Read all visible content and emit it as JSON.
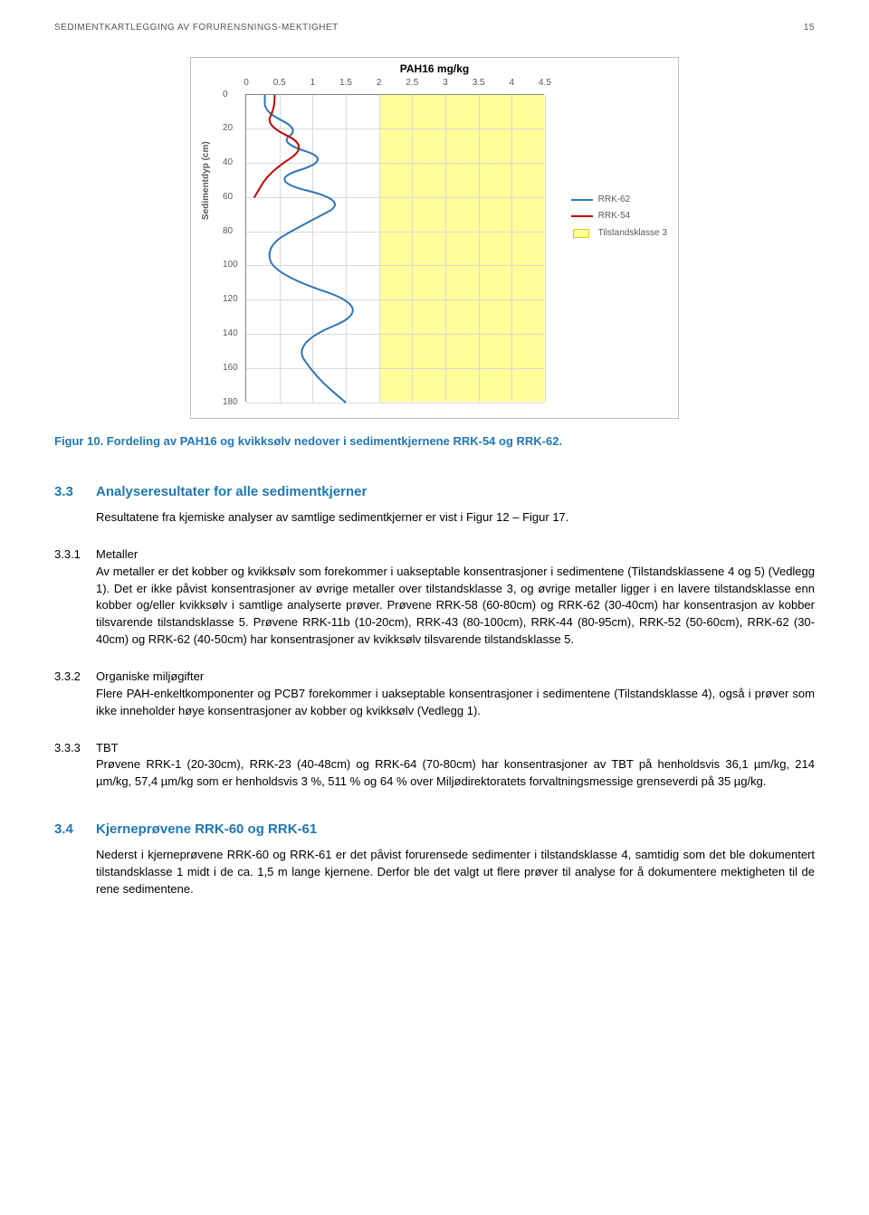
{
  "header": {
    "title": "SEDIMENTKARTLEGGING AV FORURENSNINGS-MEKTIGHET",
    "page": "15"
  },
  "chart": {
    "title": "PAH16 mg/kg",
    "y_label": "Sedimentdyp (cm)",
    "x_ticks": [
      "0",
      "0.5",
      "1",
      "1.5",
      "2",
      "2.5",
      "3",
      "3.5",
      "4",
      "4.5"
    ],
    "y_ticks": [
      "0",
      "20",
      "40",
      "60",
      "80",
      "100",
      "120",
      "140",
      "160",
      "180"
    ],
    "x_max": 4.5,
    "y_max": 180,
    "tilstand_from": 2.0,
    "tilstand_to": 4.5,
    "colors": {
      "rrk62": "#2E74B5",
      "rrk54": "#C00000",
      "tilstand_fill": "#FFFF99",
      "tilstand_border": "#D4D400",
      "grid": "#d9d9d9",
      "axis": "#808080"
    },
    "legend": {
      "rrk62": "RRK-62",
      "rrk54": "RRK-54",
      "tilstand": "Tilstandsklasse 3"
    },
    "rrk62_points": [
      [
        0.28,
        0
      ],
      [
        0.28,
        10
      ],
      [
        0.8,
        20
      ],
      [
        0.5,
        28
      ],
      [
        1.3,
        38
      ],
      [
        0.3,
        50
      ],
      [
        1.55,
        62
      ],
      [
        0.9,
        75
      ],
      [
        0.3,
        88
      ],
      [
        0.42,
        105
      ],
      [
        1.95,
        125
      ],
      [
        0.7,
        145
      ],
      [
        1.05,
        165
      ],
      [
        1.5,
        180
      ]
    ],
    "rrk54_points": [
      [
        0.43,
        0
      ],
      [
        0.42,
        8
      ],
      [
        0.3,
        18
      ],
      [
        0.95,
        30
      ],
      [
        0.35,
        45
      ],
      [
        0.12,
        60
      ]
    ]
  },
  "figure_caption": "Figur 10. Fordeling av PAH16 og kvikksølv nedover i sedimentkjernene RRK-54 og RRK-62.",
  "s33": {
    "num": "3.3",
    "title": "Analyseresultater for alle sedimentkjerner",
    "intro": "Resultatene fra kjemiske analyser av samtlige sedimentkjerner er vist i Figur 12 – Figur 17."
  },
  "s331": {
    "num": "3.3.1",
    "title": "Metaller",
    "body": "Av metaller er det kobber og kvikksølv som forekommer i uakseptable konsentrasjoner i sedimentene (Tilstandsklassene 4 og 5) (Vedlegg 1). Det er ikke påvist konsentrasjoner av øvrige metaller over tilstandsklasse 3, og øvrige metaller ligger i en lavere tilstandsklasse enn kobber og/eller kvikksølv i samtlige analyserte prøver. Prøvene RRK-58 (60-80cm) og RRK-62 (30-40cm) har konsentrasjon av kobber tilsvarende tilstandsklasse 5. Prøvene RRK-11b (10-20cm), RRK-43 (80-100cm), RRK-44 (80-95cm), RRK-52 (50-60cm), RRK-62 (30-40cm) og RRK-62 (40-50cm) har konsentrasjoner av kvikksølv tilsvarende tilstandsklasse 5."
  },
  "s332": {
    "num": "3.3.2",
    "title": "Organiske miljøgifter",
    "body": "Flere PAH-enkeltkomponenter og PCB7 forekommer i uakseptable konsentrasjoner i sedimentene (Tilstandsklasse 4), også i prøver som ikke inneholder høye konsentrasjoner av kobber og kvikksølv (Vedlegg 1)."
  },
  "s333": {
    "num": "3.3.3",
    "title": "TBT",
    "body": "Prøvene RRK-1 (20-30cm), RRK-23 (40-48cm) og RRK-64 (70-80cm) har konsentrasjoner av TBT på henholdsvis 36,1 µm/kg, 214 µm/kg, 57,4 µm/kg som er henholdsvis 3 %, 511 % og 64 % over Miljødirektoratets forvaltningsmessige grenseverdi på 35 µg/kg."
  },
  "s34": {
    "num": "3.4",
    "title": "Kjerneprøvene RRK-60 og RRK-61",
    "body": "Nederst i kjerneprøvene RRK-60 og RRK-61 er det påvist forurensede sedimenter i tilstandsklasse 4, samtidig som det ble dokumentert tilstandsklasse 1 midt i de ca. 1,5 m lange kjernene. Derfor ble det valgt ut flere prøver til analyse for å dokumentere mektigheten til de rene sedimentene."
  }
}
